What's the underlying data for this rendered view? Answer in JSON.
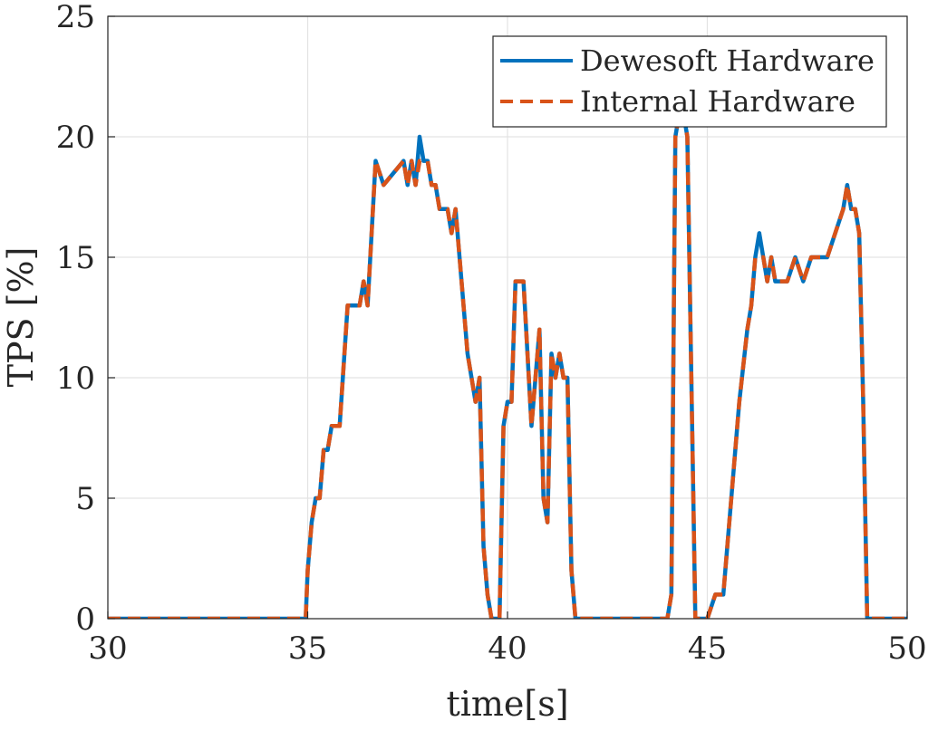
{
  "chart_data": {
    "type": "line",
    "xlabel": "time[s]",
    "ylabel": "TPS [%]",
    "xlim": [
      30,
      50
    ],
    "ylim": [
      0,
      25
    ],
    "xticks": [
      30,
      35,
      40,
      45,
      50
    ],
    "yticks": [
      0,
      5,
      10,
      15,
      20,
      25
    ],
    "grid": true,
    "legend_position": "top-right",
    "series": [
      {
        "name": "Dewesoft Hardware",
        "color": "#0072BD",
        "style": "solid",
        "x": [
          30,
          34.95,
          35.0,
          35.1,
          35.2,
          35.3,
          35.4,
          35.5,
          35.6,
          35.7,
          35.8,
          36.0,
          36.1,
          36.3,
          36.4,
          36.5,
          36.7,
          36.9,
          37.4,
          37.5,
          37.6,
          37.7,
          37.8,
          37.9,
          38.0,
          38.1,
          38.2,
          38.3,
          38.4,
          38.5,
          38.6,
          38.7,
          38.8,
          38.9,
          39.0,
          39.1,
          39.2,
          39.3,
          39.4,
          39.5,
          39.6,
          39.7,
          39.8,
          39.9,
          40.0,
          40.1,
          40.2,
          40.3,
          40.4,
          40.5,
          40.6,
          40.7,
          40.8,
          40.9,
          41.0,
          41.1,
          41.2,
          41.3,
          41.4,
          41.5,
          41.6,
          41.7,
          41.8,
          42.0,
          42.5,
          43.0,
          43.5,
          44.0,
          44.1,
          44.2,
          44.3,
          44.4,
          44.5,
          44.6,
          44.7,
          44.8,
          45.0,
          45.2,
          45.4,
          45.6,
          45.8,
          46.0,
          46.1,
          46.2,
          46.3,
          46.4,
          46.5,
          46.6,
          46.7,
          46.8,
          47.0,
          47.2,
          47.4,
          47.6,
          47.8,
          48.0,
          48.2,
          48.4,
          48.5,
          48.6,
          48.7,
          48.8,
          48.9,
          49.0,
          49.5,
          50.0
        ],
        "y": [
          0,
          0,
          2,
          4,
          5,
          5,
          7,
          7,
          8,
          8,
          8,
          13,
          13,
          13,
          14,
          13,
          19,
          18,
          19,
          18,
          19,
          18,
          20,
          19,
          19,
          18,
          18,
          17,
          17,
          17,
          16,
          17,
          15,
          13,
          11,
          10,
          9,
          10,
          3,
          1,
          0,
          0,
          0,
          8,
          9,
          9,
          14,
          14,
          14,
          11,
          8,
          10,
          12,
          5,
          4,
          11,
          10,
          11,
          10,
          10,
          2,
          0,
          0,
          0,
          0,
          0,
          0,
          0,
          1,
          20,
          21,
          21,
          20,
          10,
          0,
          0,
          0,
          1,
          1,
          5,
          9,
          12,
          13,
          15,
          16,
          15,
          14,
          15,
          14,
          14,
          14,
          15,
          14,
          15,
          15,
          15,
          16,
          17,
          18,
          17,
          17,
          16,
          9,
          0,
          0,
          0
        ]
      },
      {
        "name": "Internal Hardware",
        "color": "#D95319",
        "style": "dashed",
        "x": [
          30,
          34.95,
          35.0,
          35.1,
          35.2,
          35.3,
          35.4,
          35.5,
          35.6,
          35.7,
          35.8,
          36.0,
          36.1,
          36.3,
          36.4,
          36.5,
          36.7,
          36.9,
          37.4,
          37.5,
          37.6,
          37.7,
          37.8,
          37.9,
          38.0,
          38.1,
          38.2,
          38.3,
          38.4,
          38.5,
          38.6,
          38.7,
          38.8,
          38.9,
          39.0,
          39.1,
          39.2,
          39.3,
          39.4,
          39.5,
          39.6,
          39.7,
          39.8,
          39.9,
          40.0,
          40.1,
          40.2,
          40.3,
          40.4,
          40.5,
          40.6,
          40.7,
          40.8,
          40.9,
          41.0,
          41.1,
          41.2,
          41.3,
          41.4,
          41.5,
          41.6,
          41.7,
          41.8,
          42.0,
          42.5,
          43.0,
          43.5,
          44.0,
          44.1,
          44.2,
          44.3,
          44.4,
          44.5,
          44.6,
          44.7,
          44.8,
          45.0,
          45.2,
          45.4,
          45.6,
          45.8,
          46.0,
          46.1,
          46.2,
          46.3,
          46.4,
          46.5,
          46.6,
          46.7,
          46.8,
          47.0,
          47.2,
          47.4,
          47.6,
          47.8,
          48.0,
          48.2,
          48.4,
          48.5,
          48.6,
          48.7,
          48.8,
          48.9,
          49.0,
          49.5,
          50.0
        ],
        "y": [
          0,
          0,
          2,
          4,
          5,
          5,
          7,
          7,
          8,
          8,
          8,
          13,
          13,
          13,
          14,
          13,
          19,
          18,
          19,
          18,
          19,
          18,
          19,
          19,
          19,
          18,
          18,
          17,
          17,
          17,
          16,
          17,
          15,
          13,
          11,
          10,
          9,
          10,
          3,
          1,
          0,
          0,
          0,
          8,
          9,
          9,
          14,
          14,
          14,
          11,
          8,
          10,
          12,
          5,
          4,
          11,
          10,
          11,
          10,
          10,
          2,
          0,
          0,
          0,
          0,
          0,
          0,
          0,
          1,
          20,
          21,
          21,
          20,
          10,
          0,
          0,
          0,
          1,
          1,
          5,
          9,
          12,
          13,
          15,
          15,
          15,
          14,
          15,
          14,
          14,
          14,
          15,
          14,
          15,
          15,
          15,
          16,
          17,
          18,
          17,
          17,
          16,
          9,
          0,
          0,
          0
        ]
      }
    ]
  }
}
